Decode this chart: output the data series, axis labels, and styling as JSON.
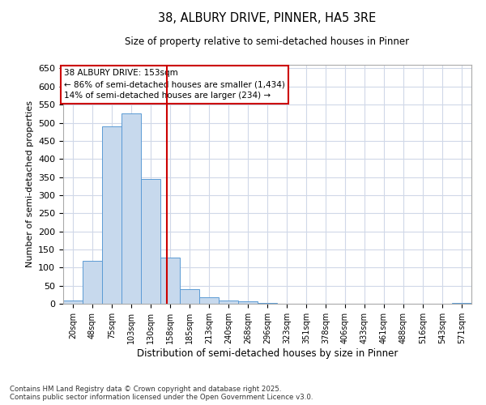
{
  "title": "38, ALBURY DRIVE, PINNER, HA5 3RE",
  "subtitle": "Size of property relative to semi-detached houses in Pinner",
  "xlabel": "Distribution of semi-detached houses by size in Pinner",
  "ylabel": "Number of semi-detached properties",
  "footer_line1": "Contains HM Land Registry data © Crown copyright and database right 2025.",
  "footer_line2": "Contains public sector information licensed under the Open Government Licence v3.0.",
  "annotation_title": "38 ALBURY DRIVE: 153sqm",
  "annotation_line1": "← 86% of semi-detached houses are smaller (1,434)",
  "annotation_line2": "14% of semi-detached houses are larger (234) →",
  "property_size": 153,
  "categories": [
    "20sqm",
    "48sqm",
    "75sqm",
    "103sqm",
    "130sqm",
    "158sqm",
    "185sqm",
    "213sqm",
    "240sqm",
    "268sqm",
    "296sqm",
    "323sqm",
    "351sqm",
    "378sqm",
    "406sqm",
    "433sqm",
    "461sqm",
    "488sqm",
    "516sqm",
    "543sqm",
    "571sqm"
  ],
  "bin_edges": [
    6.5,
    34,
    61.5,
    89,
    116.5,
    144,
    171.5,
    199,
    226.5,
    254,
    281.5,
    309,
    336.5,
    364,
    391.5,
    419,
    446.5,
    474,
    501.5,
    529,
    556.5,
    584
  ],
  "values": [
    10,
    118,
    490,
    525,
    345,
    127,
    40,
    17,
    8,
    7,
    3,
    1,
    0,
    1,
    0,
    0,
    0,
    0,
    0,
    0,
    3
  ],
  "bar_color": "#c7d9ed",
  "bar_edge_color": "#5b9bd5",
  "vline_color": "#cc0000",
  "vline_x": 153,
  "annotation_box_color": "#cc0000",
  "background_color": "#ffffff",
  "grid_color": "#d0d8e8",
  "ylim": [
    0,
    660
  ],
  "yticks": [
    0,
    50,
    100,
    150,
    200,
    250,
    300,
    350,
    400,
    450,
    500,
    550,
    600,
    650
  ]
}
